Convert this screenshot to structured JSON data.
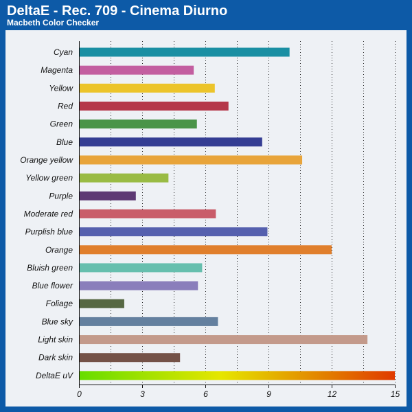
{
  "header": {
    "title": "DeltaE - Rec. 709 - Cinema Diurno",
    "subtitle": "Macbeth Color Checker"
  },
  "chart_data": {
    "type": "bar",
    "orientation": "horizontal",
    "title": "DeltaE - Rec. 709 - Cinema Diurno",
    "subtitle": "Macbeth Color Checker",
    "xlabel": "",
    "ylabel": "",
    "xlim": [
      0,
      15
    ],
    "xticks": [
      0,
      3,
      6,
      9,
      12,
      15
    ],
    "grid": "vertical dotted",
    "categories": [
      "Cyan",
      "Magenta",
      "Yellow",
      "Red",
      "Green",
      "Blue",
      "Orange yellow",
      "Yellow green",
      "Purple",
      "Moderate red",
      "Purplish blue",
      "Orange",
      "Bluish green",
      "Blue flower",
      "Foliage",
      "Blue sky",
      "Light skin",
      "Dark skin",
      "DeltaE uV"
    ],
    "values": [
      10.0,
      5.45,
      6.45,
      7.1,
      5.6,
      8.7,
      10.6,
      4.25,
      2.7,
      6.5,
      8.95,
      12.0,
      5.85,
      5.65,
      2.15,
      6.6,
      13.7,
      4.8,
      15.0
    ],
    "colors": [
      "#1a8fa3",
      "#c35ea0",
      "#ecc42a",
      "#b5384a",
      "#4a9448",
      "#343d93",
      "#e8a43a",
      "#99bb44",
      "#5e3a74",
      "#c95d6a",
      "#5560ae",
      "#e07f2c",
      "#66bfae",
      "#8a7ebb",
      "#566843",
      "#64809f",
      "#c39a8b",
      "#745248",
      "gradient"
    ],
    "gradient_stops": [
      "#66dd00",
      "#e6e600",
      "#e03a00"
    ]
  }
}
